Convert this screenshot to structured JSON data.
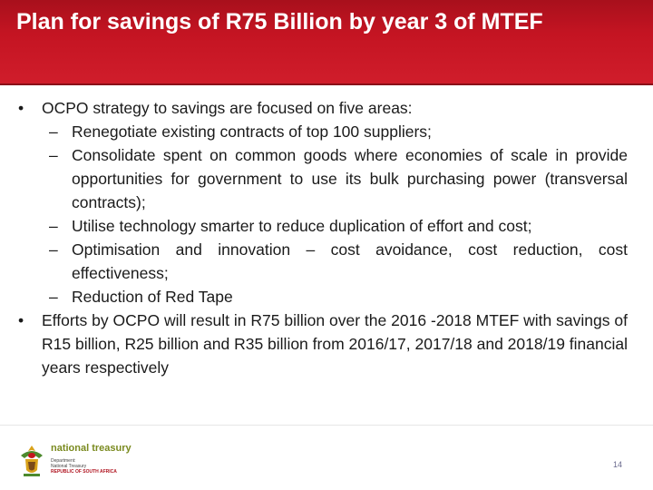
{
  "header": {
    "title": "Plan for savings of R75 Billion by year 3 of MTEF"
  },
  "content": {
    "bullet_char": "•",
    "dash_char": "–",
    "item1": {
      "text": "OCPO strategy to savings are focused on five areas:",
      "subitems": [
        "Renegotiate existing contracts of top 100 suppliers;",
        "Consolidate spent on common goods where economies of scale in provide opportunities for government to use its bulk purchasing power (transversal contracts);",
        "Utilise technology smarter to reduce duplication of effort and cost;",
        "Optimisation and innovation – cost avoidance, cost reduction, cost effectiveness;",
        "Reduction of Red Tape"
      ]
    },
    "item2": {
      "text": "Efforts by OCPO will result in R75 billion over the 2016 -2018 MTEF with savings of R15 billion, R25 billion and R35 billion from 2016/17, 2017/18 and 2018/19 financial years respectively"
    }
  },
  "footer": {
    "logo_title": "national treasury",
    "logo_line1": "Department:",
    "logo_line2": "National Treasury",
    "logo_line3": "REPUBLIC OF SOUTH AFRICA",
    "page_number": "14"
  }
}
